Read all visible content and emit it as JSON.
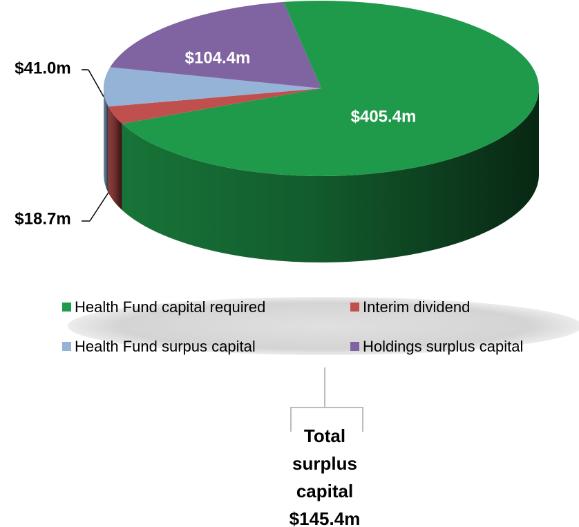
{
  "chart_data": {
    "type": "pie",
    "categories": [
      "Health Fund capital  required",
      "Interim dividend",
      "Health Fund surpus capital",
      "Holdings surplus capital"
    ],
    "values": [
      405.4,
      18.7,
      41.0,
      104.4
    ],
    "value_labels": [
      "$405.4m",
      "$18.7m",
      "$41.0m",
      "$104.4m"
    ],
    "colors": [
      "#1f9a4b",
      "#c0504d",
      "#95b3d7",
      "#8064a2"
    ],
    "annotation": [
      "Total",
      "surplus",
      "capital",
      "$145.4m"
    ]
  }
}
